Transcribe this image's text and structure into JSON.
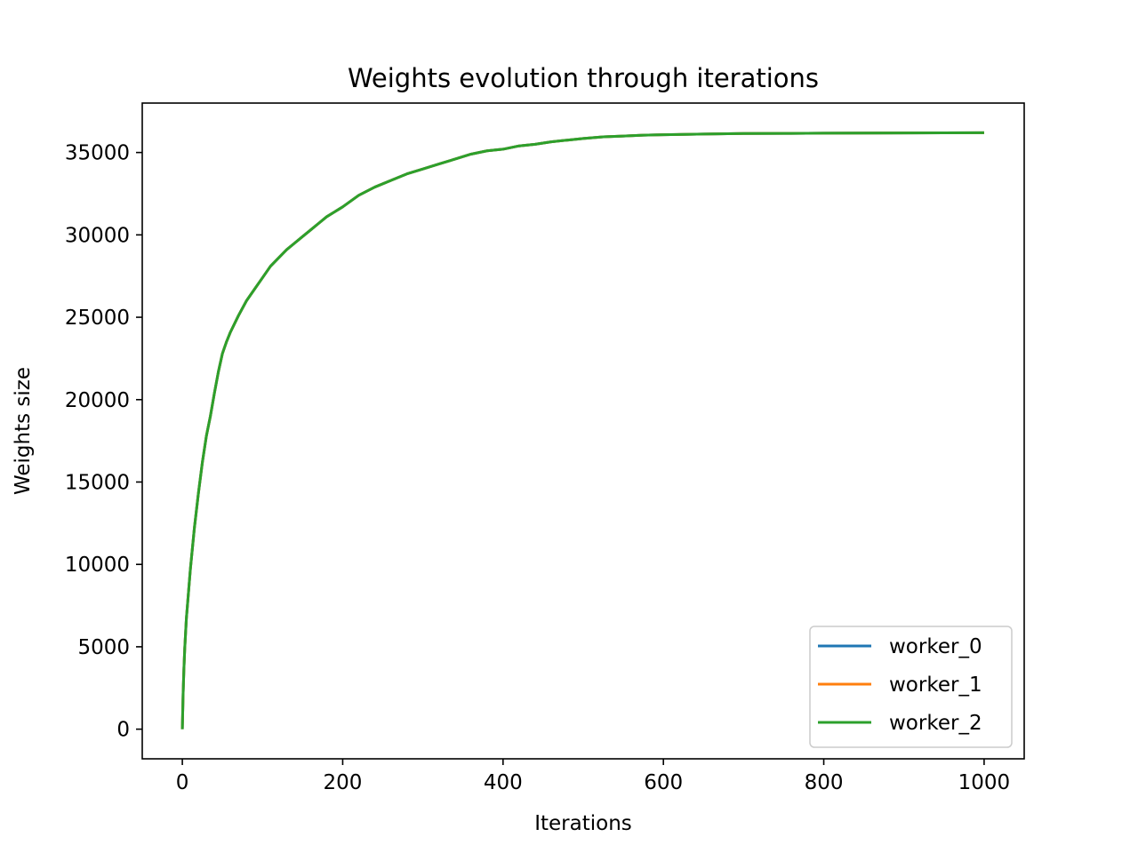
{
  "chart_data": {
    "type": "line",
    "title": "Weights evolution through iterations",
    "xlabel": "Iterations",
    "ylabel": "Weights size",
    "xlim": [
      -50,
      1050
    ],
    "ylim": [
      -1800,
      38000
    ],
    "xticks": [
      0,
      200,
      400,
      600,
      800,
      1000
    ],
    "yticks": [
      0,
      5000,
      10000,
      15000,
      20000,
      25000,
      30000,
      35000
    ],
    "grid": false,
    "legend": "lower-right",
    "x": [
      0,
      1,
      2,
      3,
      5,
      8,
      10,
      15,
      20,
      25,
      30,
      35,
      40,
      45,
      50,
      55,
      60,
      70,
      80,
      90,
      100,
      110,
      120,
      130,
      140,
      150,
      160,
      170,
      180,
      190,
      200,
      220,
      240,
      260,
      280,
      300,
      320,
      340,
      360,
      380,
      400,
      420,
      440,
      460,
      480,
      500,
      525,
      550,
      575,
      600,
      650,
      700,
      750,
      800,
      850,
      900,
      950,
      1000
    ],
    "series": [
      {
        "name": "worker_0",
        "color": "#1f77b4",
        "values": [
          0,
          2200,
          3700,
          4900,
          6700,
          8500,
          9700,
          12200,
          14300,
          16200,
          17800,
          19000,
          20400,
          21700,
          22800,
          23500,
          24100,
          25100,
          26000,
          26700,
          27400,
          28100,
          28600,
          29100,
          29500,
          29900,
          30300,
          30700,
          31100,
          31400,
          31700,
          32400,
          32900,
          33300,
          33700,
          34000,
          34300,
          34600,
          34900,
          35100,
          35200,
          35400,
          35500,
          35650,
          35750,
          35850,
          35950,
          36000,
          36050,
          36080,
          36120,
          36150,
          36160,
          36170,
          36180,
          36185,
          36190,
          36200
        ]
      },
      {
        "name": "worker_1",
        "color": "#ff7f0e",
        "values": [
          0,
          2200,
          3700,
          4900,
          6700,
          8500,
          9700,
          12200,
          14300,
          16200,
          17800,
          19000,
          20400,
          21700,
          22800,
          23500,
          24100,
          25100,
          26000,
          26700,
          27400,
          28100,
          28600,
          29100,
          29500,
          29900,
          30300,
          30700,
          31100,
          31400,
          31700,
          32400,
          32900,
          33300,
          33700,
          34000,
          34300,
          34600,
          34900,
          35100,
          35200,
          35400,
          35500,
          35650,
          35750,
          35850,
          35950,
          36000,
          36050,
          36080,
          36120,
          36150,
          36160,
          36170,
          36180,
          36185,
          36190,
          36200
        ]
      },
      {
        "name": "worker_2",
        "color": "#2ca02c",
        "values": [
          0,
          2200,
          3700,
          4900,
          6700,
          8500,
          9700,
          12200,
          14300,
          16200,
          17800,
          19000,
          20400,
          21700,
          22800,
          23500,
          24100,
          25100,
          26000,
          26700,
          27400,
          28100,
          28600,
          29100,
          29500,
          29900,
          30300,
          30700,
          31100,
          31400,
          31700,
          32400,
          32900,
          33300,
          33700,
          34000,
          34300,
          34600,
          34900,
          35100,
          35200,
          35400,
          35500,
          35650,
          35750,
          35850,
          35950,
          36000,
          36050,
          36080,
          36120,
          36150,
          36160,
          36170,
          36180,
          36185,
          36190,
          36200
        ]
      }
    ]
  }
}
